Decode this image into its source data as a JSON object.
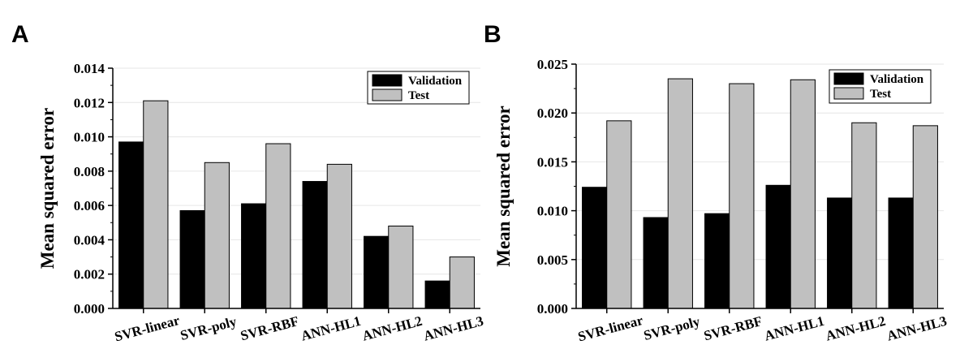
{
  "chart_data": [
    {
      "panel": "A",
      "type": "bar",
      "title": "",
      "xlabel": "",
      "ylabel": "Mean squared error",
      "ylim": [
        0,
        0.014
      ],
      "yticks": [
        "0.000",
        "0.002",
        "0.004",
        "0.006",
        "0.008",
        "0.010",
        "0.012",
        "0.014"
      ],
      "categories": [
        "SVR-linear",
        "SVR-poly",
        "SVR-RBF",
        "ANN-HL1",
        "ANN-HL2",
        "ANN-HL3"
      ],
      "series": [
        {
          "name": "Validation",
          "color": "#000000",
          "values": [
            0.0097,
            0.0057,
            0.0061,
            0.0074,
            0.0042,
            0.0016
          ]
        },
        {
          "name": "Test",
          "color": "#c0c0c0",
          "values": [
            0.0121,
            0.0085,
            0.0096,
            0.0084,
            0.0048,
            0.003
          ]
        }
      ],
      "legend": "top-right",
      "grid": true
    },
    {
      "panel": "B",
      "type": "bar",
      "title": "",
      "xlabel": "",
      "ylabel": "Mean squared error",
      "ylim": [
        0,
        0.025
      ],
      "yticks": [
        "0.000",
        "0.005",
        "0.010",
        "0.015",
        "0.020",
        "0.025"
      ],
      "categories": [
        "SVR-linear",
        "SVR-poly",
        "SVR-RBF",
        "ANN-HL1",
        "ANN-HL2",
        "ANN-HL3"
      ],
      "series": [
        {
          "name": "Validation",
          "color": "#000000",
          "values": [
            0.0124,
            0.0093,
            0.0097,
            0.0126,
            0.0113,
            0.0113
          ]
        },
        {
          "name": "Test",
          "color": "#c0c0c0",
          "values": [
            0.0192,
            0.0235,
            0.023,
            0.0234,
            0.019,
            0.0187
          ]
        }
      ],
      "legend": "top-right",
      "grid": true
    }
  ]
}
